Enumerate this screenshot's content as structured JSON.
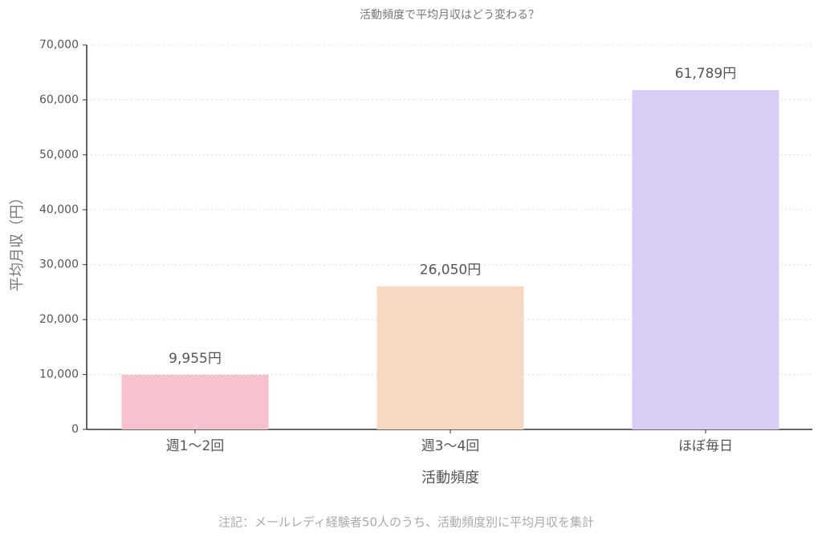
{
  "chart_data": {
    "type": "bar",
    "title": "活動頻度で平均月収はどう変わる？",
    "x_label": "活動頻度",
    "y_label": "平均月収（円）",
    "note": "注記：メールレディ経験者50人のうち、活動頻度別に平均月収を集計",
    "categories": [
      "週1〜2回",
      "週3〜4回",
      "ほぼ毎日"
    ],
    "values": [
      9955,
      26050,
      61789
    ],
    "value_labels": [
      "9,955円",
      "26,050円",
      "61,789円"
    ],
    "colors": [
      "#f7c1cd",
      "#f7d9c1",
      "#d9cdf5"
    ],
    "ylim": [
      0,
      70000
    ],
    "yticks": [
      0,
      {
        "value": 10000,
        "label": "10,000"
      },
      {
        "value": 20000,
        "label": "20,000"
      },
      {
        "value": 30000,
        "label": "30,000"
      },
      {
        "value": 40000,
        "label": "40,000"
      },
      {
        "value": 50000,
        "label": "50,000"
      },
      {
        "value": 60000,
        "label": "60,000"
      },
      {
        "value": 70000,
        "label": "70,000"
      }
    ],
    "grid": true
  }
}
